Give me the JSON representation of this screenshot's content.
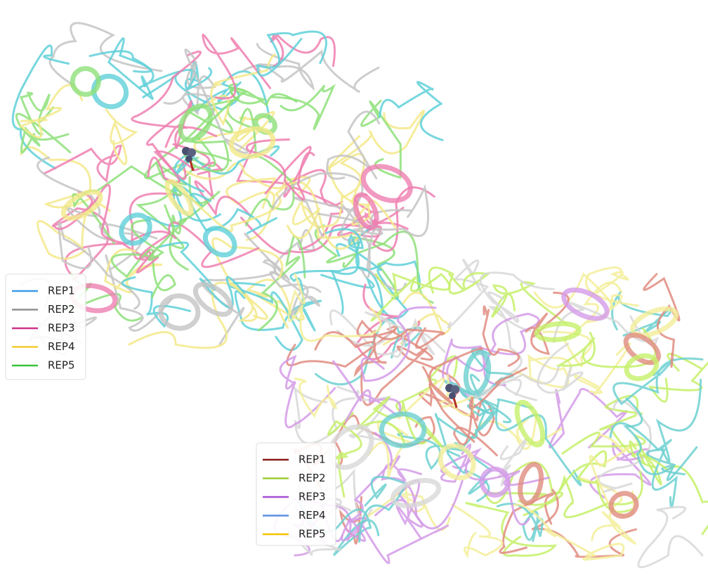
{
  "legends": [
    {
      "entries": [
        {
          "label": "REP1",
          "color": "#3c9be8"
        },
        {
          "label": "REP2",
          "color": "#8f8f8f"
        },
        {
          "label": "REP3",
          "color": "#d0338a"
        },
        {
          "label": "REP4",
          "color": "#f5cc2f"
        },
        {
          "label": "REP5",
          "color": "#3bc43b"
        }
      ]
    },
    {
      "entries": [
        {
          "label": "REP1",
          "color": "#8b1a1a"
        },
        {
          "label": "REP2",
          "color": "#9acd32"
        },
        {
          "label": "REP3",
          "color": "#a64dd1"
        },
        {
          "label": "REP4",
          "color": "#5b8fe0"
        },
        {
          "label": "REP5",
          "color": "#f5c400"
        }
      ]
    }
  ]
}
